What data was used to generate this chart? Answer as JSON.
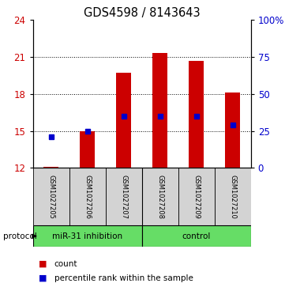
{
  "title": "GDS4598 / 8143643",
  "samples": [
    "GSM1027205",
    "GSM1027206",
    "GSM1027207",
    "GSM1027208",
    "GSM1027209",
    "GSM1027210"
  ],
  "counts": [
    12.1,
    15.0,
    19.7,
    21.3,
    20.7,
    18.1
  ],
  "percentile_ranks": [
    14.5,
    15.0,
    16.2,
    16.2,
    16.2,
    15.5
  ],
  "ylim": [
    12,
    24
  ],
  "yticks_left": [
    12,
    15,
    18,
    21,
    24
  ],
  "yticklabels_right": [
    "0",
    "25",
    "50",
    "75",
    "100%"
  ],
  "bar_bottom": 12,
  "bar_color": "#cc0000",
  "dot_color": "#0000cc",
  "gridline_y": [
    15,
    18,
    21
  ],
  "legend_items": [
    {
      "color": "#cc0000",
      "label": "count",
      "marker": "s"
    },
    {
      "color": "#0000cc",
      "label": "percentile rank within the sample",
      "marker": "s"
    }
  ],
  "sample_box_color": "#d3d3d3",
  "tick_label_color_left": "#cc0000",
  "tick_label_color_right": "#0000cc",
  "green_color": "#66dd66",
  "protocol_label": "protocol"
}
